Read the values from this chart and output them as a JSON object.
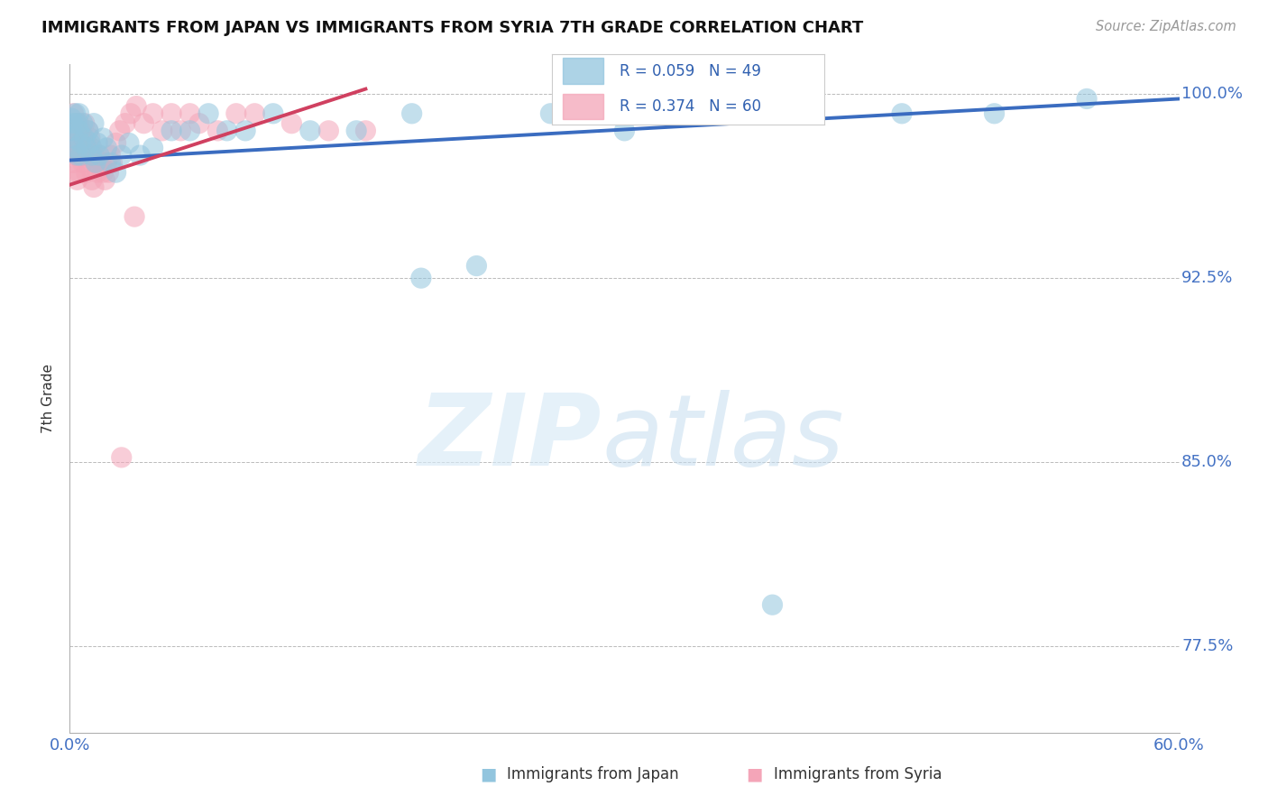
{
  "title": "IMMIGRANTS FROM JAPAN VS IMMIGRANTS FROM SYRIA 7TH GRADE CORRELATION CHART",
  "source": "Source: ZipAtlas.com",
  "ylabel": "7th Grade",
  "xlim": [
    0.0,
    0.6
  ],
  "ylim": [
    0.74,
    1.012
  ],
  "ytick_vals": [
    0.775,
    0.85,
    0.925,
    1.0
  ],
  "ytick_labels": [
    "77.5%",
    "85.0%",
    "92.5%",
    "100.0%"
  ],
  "japan_color": "#92C5DE",
  "syria_color": "#F4A5B8",
  "japan_line_color": "#3A6CC0",
  "syria_line_color": "#D04060",
  "japan_line_x": [
    0.0,
    0.6
  ],
  "japan_line_y": [
    0.973,
    0.998
  ],
  "syria_line_x": [
    0.0,
    0.16
  ],
  "syria_line_y": [
    0.963,
    1.002
  ],
  "japan_x": [
    0.001,
    0.001,
    0.002,
    0.002,
    0.003,
    0.003,
    0.004,
    0.004,
    0.005,
    0.005,
    0.006,
    0.006,
    0.007,
    0.008,
    0.009,
    0.01,
    0.011,
    0.012,
    0.013,
    0.014,
    0.015,
    0.016,
    0.018,
    0.02,
    0.022,
    0.025,
    0.028,
    0.032,
    0.038,
    0.045,
    0.055,
    0.065,
    0.075,
    0.085,
    0.095,
    0.11,
    0.13,
    0.155,
    0.185,
    0.22,
    0.26,
    0.3,
    0.35,
    0.4,
    0.45,
    0.5,
    0.55,
    0.19,
    0.38
  ],
  "japan_y": [
    0.99,
    0.985,
    0.988,
    0.982,
    0.992,
    0.978,
    0.988,
    0.975,
    0.985,
    0.992,
    0.98,
    0.975,
    0.988,
    0.982,
    0.978,
    0.985,
    0.98,
    0.975,
    0.988,
    0.972,
    0.98,
    0.975,
    0.982,
    0.978,
    0.972,
    0.968,
    0.975,
    0.98,
    0.975,
    0.978,
    0.985,
    0.985,
    0.992,
    0.985,
    0.985,
    0.992,
    0.985,
    0.985,
    0.992,
    0.93,
    0.992,
    0.985,
    0.992,
    0.992,
    0.992,
    0.992,
    0.998,
    0.925,
    0.792
  ],
  "syria_x": [
    0.001,
    0.001,
    0.002,
    0.002,
    0.002,
    0.003,
    0.003,
    0.003,
    0.004,
    0.004,
    0.004,
    0.005,
    0.005,
    0.005,
    0.006,
    0.006,
    0.007,
    0.007,
    0.008,
    0.008,
    0.009,
    0.009,
    0.01,
    0.01,
    0.011,
    0.011,
    0.012,
    0.012,
    0.013,
    0.013,
    0.014,
    0.015,
    0.016,
    0.017,
    0.018,
    0.019,
    0.02,
    0.021,
    0.022,
    0.023,
    0.025,
    0.027,
    0.03,
    0.033,
    0.036,
    0.04,
    0.045,
    0.05,
    0.055,
    0.06,
    0.065,
    0.07,
    0.08,
    0.09,
    0.1,
    0.12,
    0.14,
    0.16,
    0.028,
    0.035
  ],
  "syria_y": [
    0.985,
    0.978,
    0.992,
    0.98,
    0.972,
    0.988,
    0.975,
    0.968,
    0.985,
    0.975,
    0.965,
    0.988,
    0.978,
    0.968,
    0.985,
    0.975,
    0.982,
    0.972,
    0.988,
    0.975,
    0.98,
    0.968,
    0.985,
    0.975,
    0.982,
    0.97,
    0.978,
    0.965,
    0.975,
    0.962,
    0.972,
    0.968,
    0.975,
    0.972,
    0.968,
    0.965,
    0.972,
    0.968,
    0.975,
    0.972,
    0.98,
    0.985,
    0.988,
    0.992,
    0.995,
    0.988,
    0.992,
    0.985,
    0.992,
    0.985,
    0.992,
    0.988,
    0.985,
    0.992,
    0.992,
    0.988,
    0.985,
    0.985,
    0.852,
    0.95
  ]
}
